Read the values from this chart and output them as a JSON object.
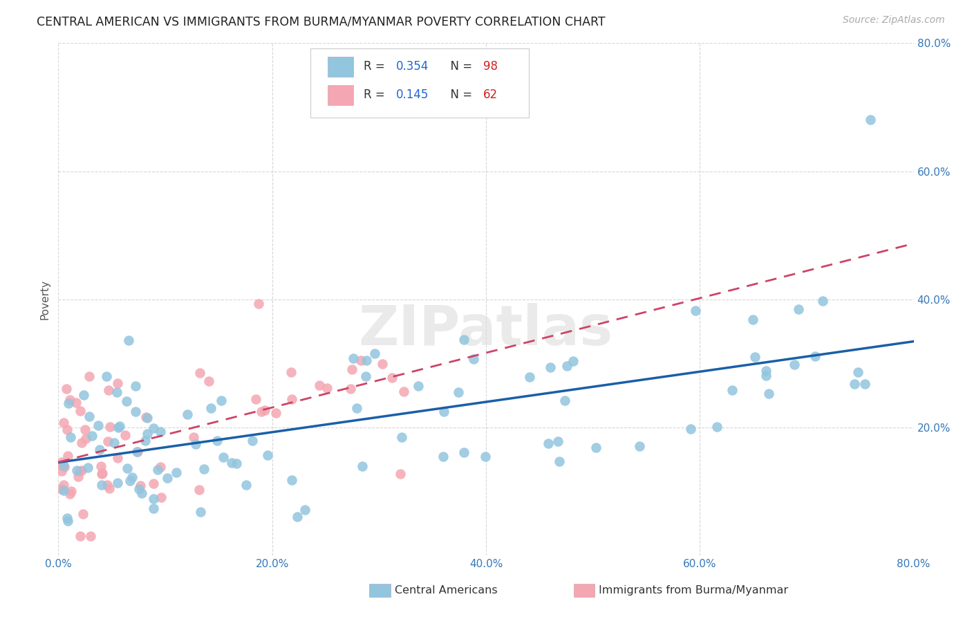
{
  "title": "CENTRAL AMERICAN VS IMMIGRANTS FROM BURMA/MYANMAR POVERTY CORRELATION CHART",
  "source": "Source: ZipAtlas.com",
  "ylabel": "Poverty",
  "xlim": [
    0.0,
    0.8
  ],
  "ylim": [
    0.0,
    0.8
  ],
  "xticks": [
    0.0,
    0.2,
    0.4,
    0.6,
    0.8
  ],
  "yticks": [
    0.2,
    0.4,
    0.6,
    0.8
  ],
  "xticklabels": [
    "0.0%",
    "20.0%",
    "40.0%",
    "60.0%",
    "80.0%"
  ],
  "yticklabels": [
    "20.0%",
    "40.0%",
    "60.0%",
    "80.0%"
  ],
  "color_blue": "#92c5de",
  "color_pink": "#f4a7b2",
  "line_blue": "#1a5fa8",
  "line_pink": "#cc4466",
  "R_blue": 0.354,
  "N_blue": 98,
  "R_pink": 0.145,
  "N_pink": 62,
  "legend_label_blue": "Central Americans",
  "legend_label_pink": "Immigrants from Burma/Myanmar",
  "watermark": "ZIPatlas",
  "title_fontsize": 12.5,
  "tick_fontsize": 11,
  "source_fontsize": 10
}
